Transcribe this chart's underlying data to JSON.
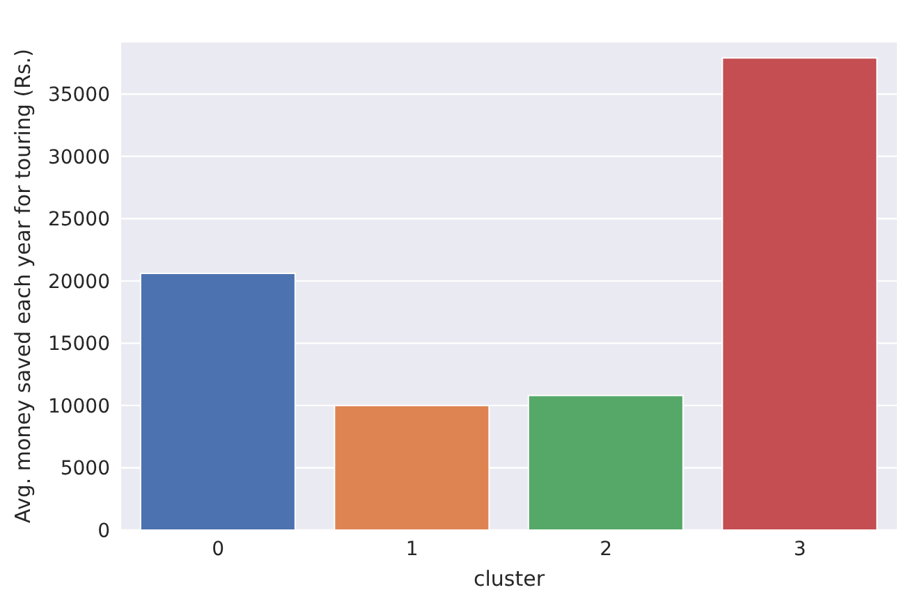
{
  "chart_data": {
    "type": "bar",
    "xlabel": "cluster",
    "ylabel": "Avg. money saved each year for touring (Rs.)",
    "categories": [
      "0",
      "1",
      "2",
      "3"
    ],
    "values": [
      20600,
      10000,
      10800,
      37900
    ],
    "colors": [
      "#4c72b0",
      "#dd8452",
      "#55a868",
      "#c44e52"
    ],
    "ylim": [
      0,
      39200
    ],
    "yticks": [
      0,
      5000,
      10000,
      15000,
      20000,
      25000,
      30000,
      35000
    ],
    "grid": "y"
  }
}
